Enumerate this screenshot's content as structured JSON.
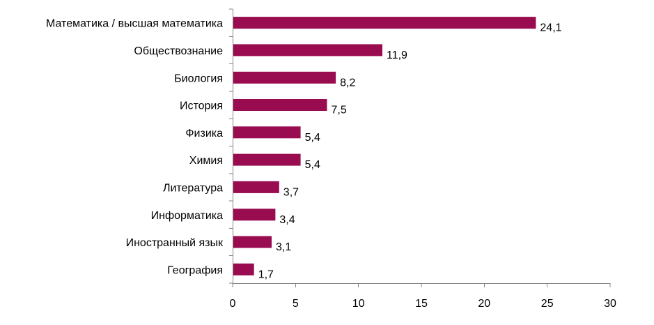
{
  "chart_data": {
    "type": "bar",
    "orientation": "horizontal",
    "title": "",
    "xlabel": "",
    "ylabel": "",
    "categories": [
      "Математика / высшая математика",
      "Обществознание",
      "Биология",
      "История",
      "Физика",
      "Химия",
      "Литература",
      "Информатика",
      "Иностранный язык",
      "География"
    ],
    "values": [
      24.1,
      11.9,
      8.2,
      7.5,
      5.4,
      5.4,
      3.7,
      3.4,
      3.1,
      1.7
    ],
    "value_labels": [
      "24,1",
      "11,9",
      "8,2",
      "7,5",
      "5,4",
      "5,4",
      "3,7",
      "3,4",
      "3,1",
      "1,7"
    ],
    "xlim": [
      0,
      30
    ],
    "xticks": [
      0,
      5,
      10,
      15,
      20,
      25,
      30
    ],
    "xtick_labels": [
      "0",
      "5",
      "10",
      "15",
      "20",
      "25",
      "30"
    ],
    "grid": false,
    "legend": "none",
    "bar_color": "#990c4f"
  }
}
